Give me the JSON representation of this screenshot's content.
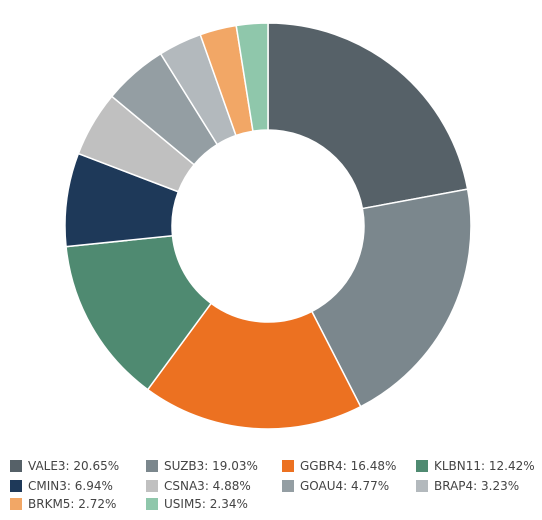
{
  "chart_data": {
    "type": "pie",
    "style": "donut",
    "legend_position": "bottom",
    "slices": [
      {
        "label": "VALE3: 20.65%",
        "value": 20.65,
        "color": "#566168"
      },
      {
        "label": "SUZB3: 19.03%",
        "value": 19.03,
        "color": "#7b878d"
      },
      {
        "label": "GGBR4: 16.48%",
        "value": 16.48,
        "color": "#ec7121"
      },
      {
        "label": "KLBN11: 12.42%",
        "value": 12.42,
        "color": "#4f8a71"
      },
      {
        "label": "CMIN3: 6.94%",
        "value": 6.94,
        "color": "#1e3959"
      },
      {
        "label": "CSNA3: 4.88%",
        "value": 4.88,
        "color": "#c0c0c0"
      },
      {
        "label": "GOAU4: 4.77%",
        "value": 4.77,
        "color": "#949ea3"
      },
      {
        "label": "BRAP4: 3.23%",
        "value": 3.23,
        "color": "#b3b9bd"
      },
      {
        "label": "BRKM5: 2.72%",
        "value": 2.72,
        "color": "#f2a766"
      },
      {
        "label": "USIM5: 2.34%",
        "value": 2.34,
        "color": "#8fc7ab"
      }
    ]
  }
}
